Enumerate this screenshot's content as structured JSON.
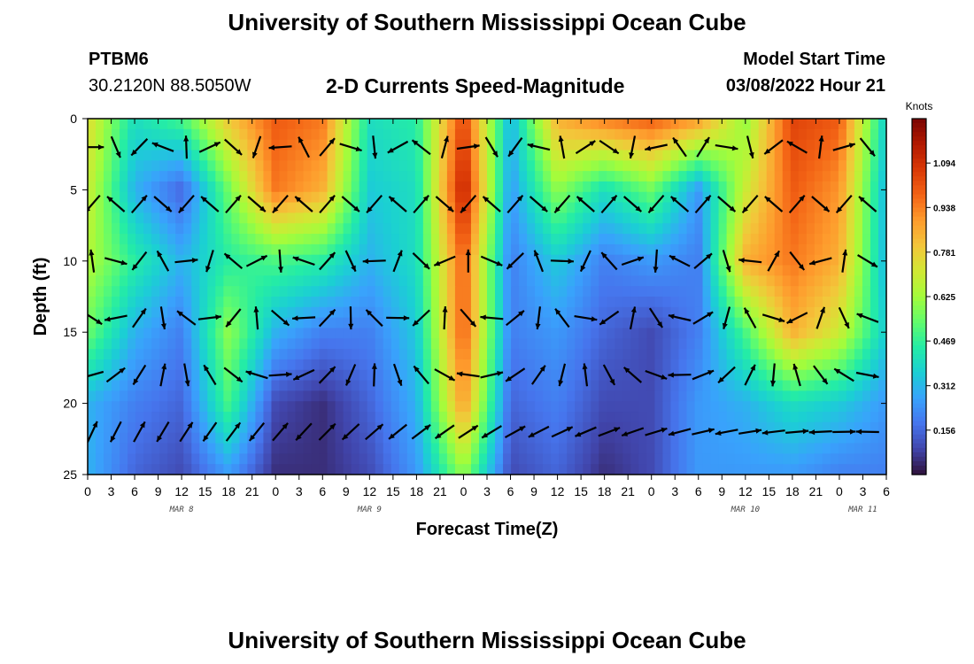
{
  "header": {
    "title": "University of Southern Mississippi Ocean Cube",
    "station": "PTBM6",
    "coords": "30.2120N  88.5050W",
    "subtitle": "2-D Currents Speed-Magnitude",
    "model_start_label": "Model Start Time",
    "model_start_value": "03/08/2022 Hour 21"
  },
  "footer": {
    "title": "University of Southern Mississippi Ocean Cube"
  },
  "chart_data": {
    "type": "heatmap",
    "xlabel": "Forecast Time(Z)",
    "ylabel": "Depth (ft)",
    "x_tick_labels": [
      "0",
      "3",
      "6",
      "9",
      "12",
      "15",
      "18",
      "21",
      "0",
      "3",
      "6",
      "9",
      "12",
      "15",
      "18",
      "21",
      "0",
      "3",
      "6",
      "9",
      "12",
      "15",
      "18",
      "21",
      "0",
      "3",
      "6",
      "9",
      "12",
      "15",
      "18",
      "21",
      "0",
      "3",
      "6"
    ],
    "x_range_hours": [
      0,
      102
    ],
    "date_labels": [
      {
        "text": "MAR 8",
        "hour": 12
      },
      {
        "text": "MAR 9",
        "hour": 36
      },
      {
        "text": "MAR 10",
        "hour": 84
      },
      {
        "text": "MAR 11",
        "hour": 99
      }
    ],
    "y_ticks": [
      0,
      5,
      10,
      15,
      20,
      25
    ],
    "ylim": [
      25,
      0
    ],
    "colorbar": {
      "unit": "Knots",
      "ticks": [
        0.156,
        0.312,
        0.469,
        0.625,
        0.781,
        0.938,
        1.094
      ],
      "range": [
        0,
        1.25
      ],
      "colors": [
        "#30123b",
        "#4145ab",
        "#4675ed",
        "#39a2fc",
        "#1bcfd4",
        "#24eca6",
        "#61fc6c",
        "#a4fc3b",
        "#d1e834",
        "#f3c63a",
        "#fe9b2d",
        "#f36315",
        "#d93806",
        "#b11901",
        "#7a0402"
      ]
    },
    "speed_field": {
      "hours": [
        0,
        6,
        12,
        18,
        24,
        30,
        36,
        42,
        48,
        54,
        60,
        66,
        72,
        78,
        84,
        90,
        96,
        102
      ],
      "depths": [
        0,
        5,
        10,
        15,
        20,
        25
      ],
      "values": [
        [
          0.75,
          0.4,
          0.5,
          0.8,
          1.0,
          0.95,
          0.4,
          0.45,
          1.05,
          0.3,
          0.85,
          0.95,
          1.0,
          0.9,
          0.6,
          1.05,
          1.0,
          0.35
        ],
        [
          0.7,
          0.3,
          0.15,
          0.55,
          0.95,
          0.85,
          0.35,
          0.4,
          1.15,
          0.25,
          0.6,
          0.4,
          0.55,
          0.25,
          0.7,
          1.0,
          0.9,
          0.3
        ],
        [
          0.65,
          0.45,
          0.3,
          0.45,
          0.5,
          0.45,
          0.3,
          0.4,
          1.0,
          0.2,
          0.35,
          0.2,
          0.25,
          0.2,
          0.85,
          0.95,
          0.85,
          0.3
        ],
        [
          0.55,
          0.3,
          0.2,
          0.6,
          0.3,
          0.2,
          0.2,
          0.35,
          1.0,
          0.2,
          0.25,
          0.15,
          0.1,
          0.2,
          0.5,
          0.85,
          0.7,
          0.35
        ],
        [
          0.3,
          0.2,
          0.15,
          0.5,
          0.1,
          0.05,
          0.15,
          0.3,
          0.9,
          0.15,
          0.2,
          0.1,
          0.1,
          0.25,
          0.3,
          0.4,
          0.35,
          0.25
        ],
        [
          0.3,
          0.15,
          0.1,
          0.25,
          0.05,
          0.05,
          0.1,
          0.25,
          0.6,
          0.1,
          0.15,
          0.05,
          0.1,
          0.25,
          0.25,
          0.25,
          0.2,
          0.2
        ]
      ]
    },
    "vector_grid": {
      "hours": [
        0.6,
        3.6,
        6.6,
        9.6,
        12.6,
        15.6,
        18.6,
        21.6,
        24.6,
        27.6,
        30.6,
        33.6,
        36.6,
        39.6,
        42.6,
        45.6,
        48.6,
        51.6,
        54.6,
        57.6,
        60.6,
        63.6,
        66.6,
        69.6,
        72.6,
        75.6,
        78.6,
        81.6,
        84.6,
        87.6,
        90.6,
        93.6,
        96.6,
        99.6
      ],
      "depths": [
        2,
        6,
        10,
        14,
        18,
        22
      ]
    }
  }
}
